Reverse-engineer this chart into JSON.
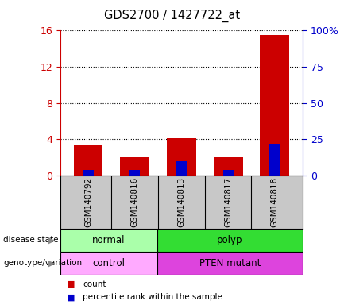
{
  "title": "GDS2700 / 1427722_at",
  "samples": [
    "GSM140792",
    "GSM140816",
    "GSM140813",
    "GSM140817",
    "GSM140818"
  ],
  "count_values": [
    3.3,
    2.0,
    4.1,
    2.0,
    15.5
  ],
  "percentile_values": [
    4.0,
    3.5,
    10.0,
    3.5,
    22.0
  ],
  "left_ylim": [
    0,
    16
  ],
  "left_yticks": [
    0,
    4,
    8,
    12,
    16
  ],
  "right_ylim": [
    0,
    100
  ],
  "right_yticks": [
    0,
    25,
    50,
    75,
    100
  ],
  "right_yticklabels": [
    "0",
    "25",
    "50",
    "75",
    "100%"
  ],
  "bar_color_red": "#cc0000",
  "bar_color_blue": "#0000cc",
  "left_axis_color": "#cc0000",
  "right_axis_color": "#0000cc",
  "disease_state_groups": [
    {
      "label": "normal",
      "start": 0,
      "end": 2,
      "color": "#aaffaa"
    },
    {
      "label": "polyp",
      "start": 2,
      "end": 5,
      "color": "#33dd33"
    }
  ],
  "genotype_groups": [
    {
      "label": "control",
      "start": 0,
      "end": 2,
      "color": "#ffaaff"
    },
    {
      "label": "PTEN mutant",
      "start": 2,
      "end": 5,
      "color": "#dd44dd"
    }
  ],
  "bar_width": 0.45,
  "background_color": "#ffffff",
  "plot_bg_color": "#ffffff",
  "sample_bg_color": "#c8c8c8",
  "grid_color": "#000000",
  "legend_items": [
    {
      "label": "count",
      "color": "#cc0000"
    },
    {
      "label": "percentile rank within the sample",
      "color": "#0000cc"
    }
  ]
}
